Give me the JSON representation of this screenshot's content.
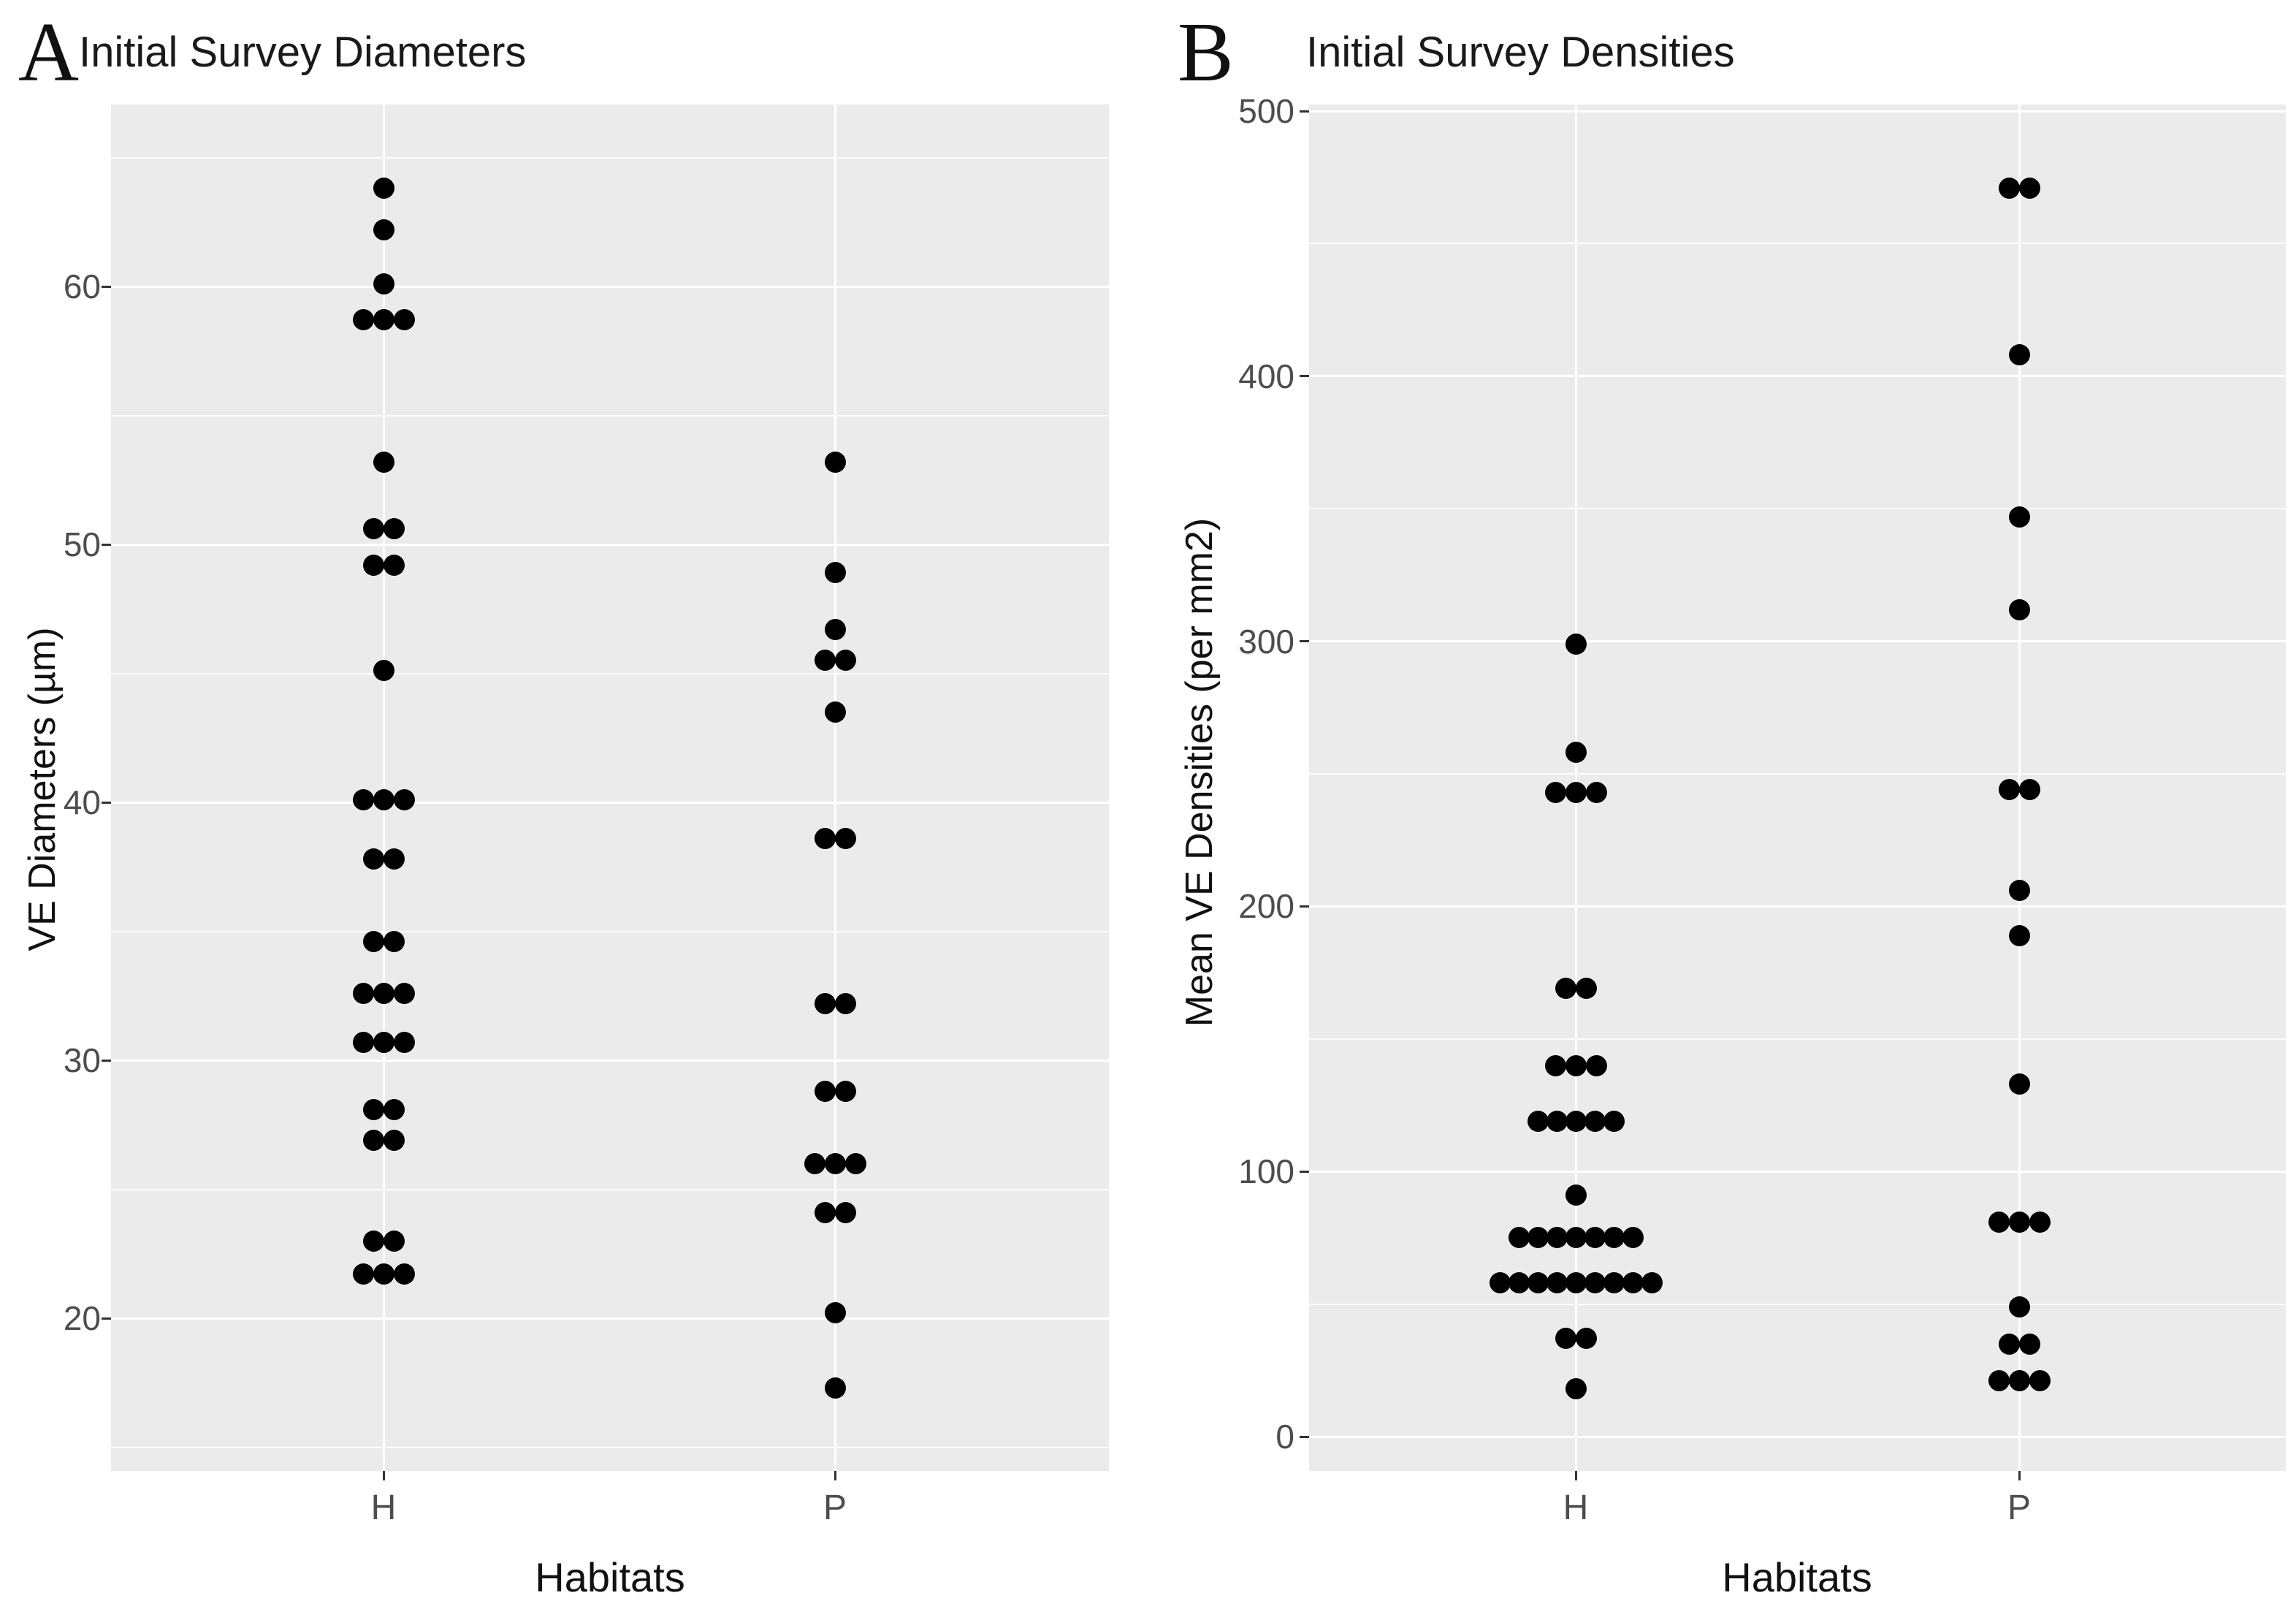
{
  "figure": {
    "background": "#ffffff",
    "panel_background": "#ebebeb",
    "gridline_color": "#ffffff",
    "dot_color": "#000000",
    "axis_text_color": "#4d4d4d",
    "title_color": "#1a1a1a"
  },
  "chart_data": [
    {
      "type": "scatter",
      "variant": "dot-strip-plot",
      "panel_label": "A",
      "title": "Initial Survey Diameters",
      "xlabel": "Habitats",
      "ylabel": "VE Diameters (µm)",
      "categories": [
        "H",
        "P"
      ],
      "yticks": [
        20,
        30,
        40,
        50,
        60
      ],
      "y_minor_ticks": [
        15,
        25,
        35,
        45,
        55,
        65
      ],
      "ylim": [
        13.9,
        67.1
      ],
      "grid": true,
      "legend": "none",
      "point_note": "points are [value, count_of_overlapping_dots_in_row]",
      "series": [
        {
          "name": "H",
          "points": [
            [
              63.8,
              1
            ],
            [
              62.2,
              1
            ],
            [
              60.1,
              1
            ],
            [
              58.7,
              3
            ],
            [
              53.2,
              1
            ],
            [
              50.6,
              2
            ],
            [
              49.2,
              2
            ],
            [
              45.1,
              1
            ],
            [
              40.1,
              3
            ],
            [
              37.8,
              2
            ],
            [
              34.6,
              2
            ],
            [
              32.6,
              3
            ],
            [
              30.7,
              3
            ],
            [
              28.1,
              2
            ],
            [
              26.9,
              2
            ],
            [
              23.0,
              2
            ],
            [
              21.7,
              3
            ]
          ]
        },
        {
          "name": "P",
          "points": [
            [
              53.2,
              1
            ],
            [
              48.9,
              1
            ],
            [
              46.7,
              1
            ],
            [
              45.5,
              2
            ],
            [
              43.5,
              1
            ],
            [
              38.6,
              2
            ],
            [
              32.2,
              2
            ],
            [
              28.8,
              2
            ],
            [
              26.0,
              3
            ],
            [
              24.1,
              2
            ],
            [
              20.2,
              1
            ],
            [
              17.3,
              1
            ]
          ]
        }
      ]
    },
    {
      "type": "scatter",
      "variant": "dot-strip-plot",
      "panel_label": "B",
      "title": "Initial Survey Densities",
      "xlabel": "Habitats",
      "ylabel": "Mean VE Densities (per mm2)",
      "categories": [
        "H",
        "P"
      ],
      "yticks": [
        0,
        100,
        200,
        300,
        400,
        500
      ],
      "y_minor_ticks": [
        50,
        150,
        250,
        350,
        450
      ],
      "ylim": [
        -12,
        504
      ],
      "grid": true,
      "legend": "none",
      "point_note": "points are [value, count_of_overlapping_dots_in_row]",
      "series": [
        {
          "name": "H",
          "points": [
            [
              299,
              1
            ],
            [
              258,
              1
            ],
            [
              243,
              3
            ],
            [
              169,
              2
            ],
            [
              140,
              3
            ],
            [
              119,
              5
            ],
            [
              91,
              1
            ],
            [
              75,
              7
            ],
            [
              58,
              9
            ],
            [
              37,
              2
            ],
            [
              18,
              1
            ]
          ]
        },
        {
          "name": "P",
          "points": [
            [
              471,
              2
            ],
            [
              408,
              1
            ],
            [
              347,
              1
            ],
            [
              312,
              1
            ],
            [
              244,
              2
            ],
            [
              206,
              1
            ],
            [
              189,
              1
            ],
            [
              133,
              1
            ],
            [
              81,
              3
            ],
            [
              49,
              1
            ],
            [
              35,
              2
            ],
            [
              21,
              3
            ]
          ]
        }
      ]
    }
  ]
}
